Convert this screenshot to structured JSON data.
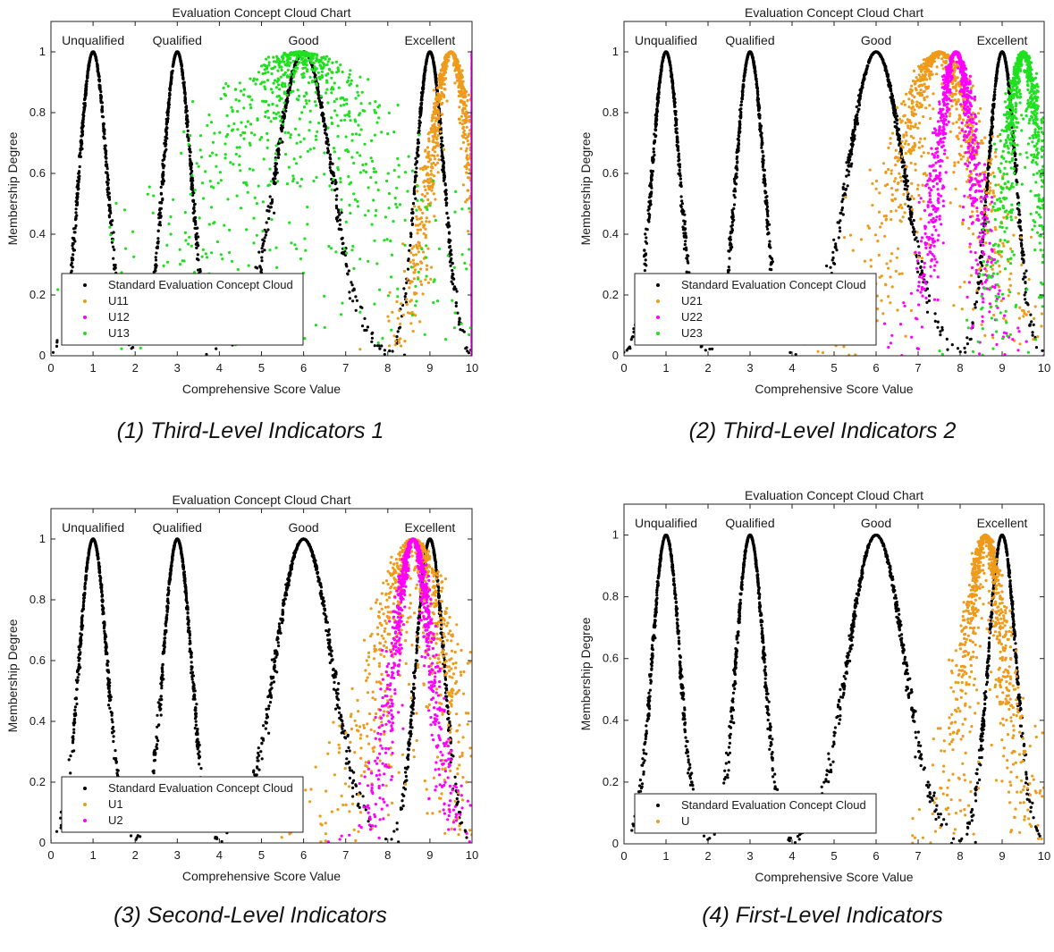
{
  "chart_data": [
    {
      "type": "scatter",
      "title": "Evaluation Concept Cloud Chart",
      "xlabel": "Comprehensive Score Value",
      "ylabel": "Membership Degree",
      "xlim": [
        0,
        10
      ],
      "ylim": [
        0,
        1.1
      ],
      "xticks": [
        0,
        1,
        2,
        3,
        4,
        5,
        6,
        7,
        8,
        9,
        10
      ],
      "yticks": [
        0,
        0.2,
        0.4,
        0.6,
        0.8,
        1
      ],
      "grades": [
        {
          "label": "Unqualified",
          "x": 1
        },
        {
          "label": "Qualified",
          "x": 3
        },
        {
          "label": "Good",
          "x": 6
        },
        {
          "label": "Excellent",
          "x": 9
        }
      ],
      "legend_position": "bottom-left",
      "series": [
        {
          "name": "Standard Evaluation Concept Cloud",
          "color": "#000000",
          "clouds": [
            {
              "Ex": 1,
              "En": 0.33
            },
            {
              "Ex": 3,
              "En": 0.33
            },
            {
              "Ex": 6,
              "En": 0.67
            },
            {
              "Ex": 9,
              "En": 0.33
            }
          ]
        },
        {
          "name": "U11",
          "color": "#ee9a1a",
          "clouds": [
            {
              "Ex": 9.5,
              "En": 0.5,
              "He": 0.1
            }
          ]
        },
        {
          "name": "U12",
          "color": "#ff00ff",
          "clouds": [
            {
              "Ex": 10,
              "En": 0.0,
              "He": 0.0
            }
          ]
        },
        {
          "name": "U13",
          "color": "#1fe01f",
          "clouds": [
            {
              "Ex": 5.9,
              "En": 1.5,
              "He": 1.0
            }
          ]
        }
      ],
      "caption": "(1) Third-Level Indicators 1"
    },
    {
      "type": "scatter",
      "title": "Evaluation Concept Cloud Chart",
      "xlabel": "Comprehensive Score Value",
      "ylabel": "Membership Degree",
      "xlim": [
        0,
        10
      ],
      "ylim": [
        0,
        1.1
      ],
      "xticks": [
        0,
        1,
        2,
        3,
        4,
        5,
        6,
        7,
        8,
        9,
        10
      ],
      "yticks": [
        0,
        0.2,
        0.4,
        0.6,
        0.8,
        1
      ],
      "grades": [
        {
          "label": "Unqualified",
          "x": 1
        },
        {
          "label": "Qualified",
          "x": 3
        },
        {
          "label": "Good",
          "x": 6
        },
        {
          "label": "Excellent",
          "x": 9
        }
      ],
      "legend_position": "bottom-left",
      "series": [
        {
          "name": "Standard Evaluation Concept Cloud",
          "color": "#000000",
          "clouds": [
            {
              "Ex": 1,
              "En": 0.33
            },
            {
              "Ex": 3,
              "En": 0.33
            },
            {
              "Ex": 6,
              "En": 0.67
            },
            {
              "Ex": 9,
              "En": 0.33
            }
          ]
        },
        {
          "name": "U21",
          "color": "#ee9a1a",
          "clouds": [
            {
              "Ex": 7.5,
              "En": 0.9,
              "He": 0.3
            }
          ]
        },
        {
          "name": "U22",
          "color": "#ff00ff",
          "clouds": [
            {
              "Ex": 7.9,
              "En": 0.45,
              "He": 0.12
            }
          ]
        },
        {
          "name": "U23",
          "color": "#1fe01f",
          "clouds": [
            {
              "Ex": 9.5,
              "En": 0.4,
              "He": 0.15
            }
          ]
        }
      ],
      "caption": "(2) Third-Level Indicators 2"
    },
    {
      "type": "scatter",
      "title": "Evaluation Concept Cloud Chart",
      "xlabel": "Comprehensive Score Value",
      "ylabel": "Membership Degree",
      "xlim": [
        0,
        10
      ],
      "ylim": [
        0,
        1.1
      ],
      "xticks": [
        0,
        1,
        2,
        3,
        4,
        5,
        6,
        7,
        8,
        9,
        10
      ],
      "yticks": [
        0,
        0.2,
        0.4,
        0.6,
        0.8,
        1
      ],
      "grades": [
        {
          "label": "Unqualified",
          "x": 1
        },
        {
          "label": "Qualified",
          "x": 3
        },
        {
          "label": "Good",
          "x": 6
        },
        {
          "label": "Excellent",
          "x": 9
        }
      ],
      "legend_position": "bottom-left",
      "series": [
        {
          "name": "Standard Evaluation Concept Cloud",
          "color": "#000000",
          "clouds": [
            {
              "Ex": 1,
              "En": 0.33
            },
            {
              "Ex": 3,
              "En": 0.33
            },
            {
              "Ex": 6,
              "En": 0.67
            },
            {
              "Ex": 9,
              "En": 0.33
            }
          ]
        },
        {
          "name": "U1",
          "color": "#ee9a1a",
          "clouds": [
            {
              "Ex": 8.6,
              "En": 0.7,
              "He": 0.3
            }
          ]
        },
        {
          "name": "U2",
          "color": "#ff00ff",
          "clouds": [
            {
              "Ex": 8.6,
              "En": 0.45,
              "He": 0.1
            }
          ]
        }
      ],
      "caption": "(3) Second-Level Indicators"
    },
    {
      "type": "scatter",
      "title": "Evaluation Concept Cloud Chart",
      "xlabel": "Comprehensive Score Value",
      "ylabel": "Membership Degree",
      "xlim": [
        0,
        10
      ],
      "ylim": [
        0,
        1.1
      ],
      "xticks": [
        0,
        1,
        2,
        3,
        4,
        5,
        6,
        7,
        8,
        9,
        10
      ],
      "yticks": [
        0,
        0.2,
        0.4,
        0.6,
        0.8,
        1
      ],
      "grades": [
        {
          "label": "Unqualified",
          "x": 1
        },
        {
          "label": "Qualified",
          "x": 3
        },
        {
          "label": "Good",
          "x": 6
        },
        {
          "label": "Excellent",
          "x": 9
        }
      ],
      "legend_position": "bottom-left",
      "series": [
        {
          "name": "Standard Evaluation Concept Cloud",
          "color": "#000000",
          "clouds": [
            {
              "Ex": 1,
              "En": 0.33
            },
            {
              "Ex": 3,
              "En": 0.33
            },
            {
              "Ex": 6,
              "En": 0.67
            },
            {
              "Ex": 9,
              "En": 0.33
            }
          ]
        },
        {
          "name": "U",
          "color": "#ee9a1a",
          "clouds": [
            {
              "Ex": 8.6,
              "En": 0.45,
              "He": 0.15
            }
          ]
        }
      ],
      "caption": "(4) First-Level Indicators"
    }
  ]
}
